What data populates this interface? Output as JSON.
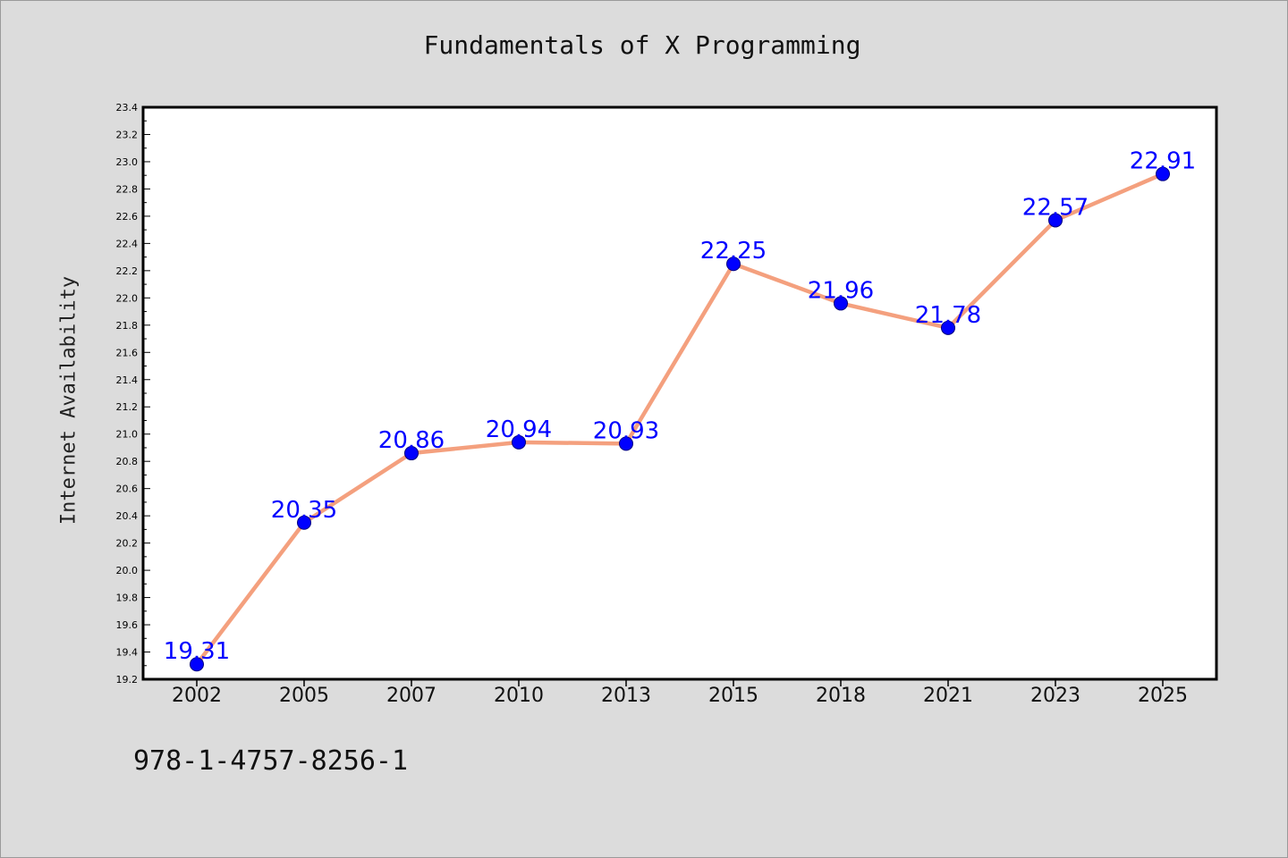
{
  "chart_data": {
    "type": "line",
    "title": "Fundamentals of X Programming",
    "xlabel": "",
    "ylabel": "Internet Availability",
    "categories": [
      "2002",
      "2005",
      "2007",
      "2010",
      "2013",
      "2015",
      "2018",
      "2021",
      "2023",
      "2025"
    ],
    "series": [
      {
        "values": [
          19.31,
          20.35,
          20.86,
          20.94,
          20.93,
          22.25,
          21.96,
          21.78,
          22.57,
          22.91
        ],
        "data_labels": [
          "19.31",
          "20.35",
          "20.86",
          "20.94",
          "20.93",
          "22.25",
          "21.96",
          "21.78",
          "22.57",
          "22.91"
        ]
      }
    ],
    "ylim": [
      19.2,
      23.4
    ],
    "yticks": [
      "19.2",
      "19.4",
      "19.6",
      "19.8",
      "20.0",
      "20.2",
      "20.4",
      "20.6",
      "20.8",
      "21.0",
      "21.2",
      "21.4",
      "21.6",
      "21.8",
      "22.0",
      "22.2",
      "22.4",
      "22.6",
      "22.8",
      "23.0",
      "23.2",
      "23.4"
    ],
    "grid": false,
    "colors": {
      "line": "#f4a07e",
      "marker": "#0000ff",
      "marker_edge": "#000080",
      "data_label": "#0000ff",
      "background": "#dcdcdc",
      "plot_area": "#ffffff"
    }
  },
  "footer": {
    "isbn": "978-1-4757-8256-1"
  }
}
